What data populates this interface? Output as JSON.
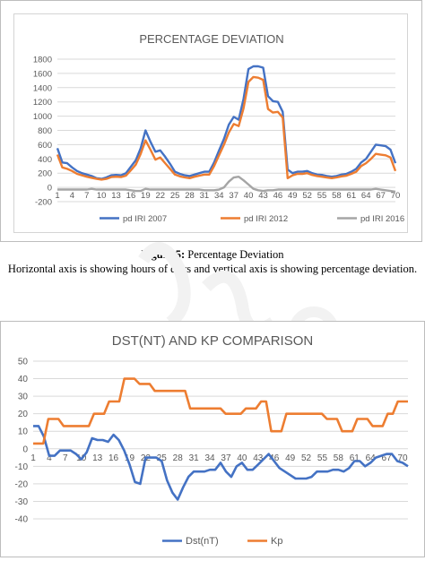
{
  "figure5": {
    "caption_label": "Figure 5:",
    "caption_text": " Percentage Deviation",
    "note": "Horizontal axis is showing hours of days and vertical axis is showing percentage deviation."
  },
  "colors": {
    "blue": "#4472c4",
    "orange": "#ed7d31",
    "gray": "#a5a5a5"
  },
  "chart_data": [
    {
      "type": "line",
      "title": "PERCENTAGE DEVIATION",
      "xlabel": "",
      "ylabel": "",
      "ylim": [
        -200,
        1800
      ],
      "yticks": [
        -200,
        0,
        200,
        400,
        600,
        800,
        1000,
        1200,
        1400,
        1600,
        1800
      ],
      "x_tick_labels": [
        "1",
        "4",
        "7",
        "10",
        "13",
        "16",
        "19",
        "22",
        "25",
        "28",
        "31",
        "34",
        "37",
        "40",
        "43",
        "46",
        "49",
        "52",
        "55",
        "58",
        "61",
        "64",
        "67",
        "70"
      ],
      "grid": true,
      "legend": "bottom",
      "series": [
        {
          "name": "pd IRI 2007",
          "color": "#4472c4",
          "values": [
            550,
            350,
            340,
            280,
            230,
            200,
            180,
            160,
            130,
            120,
            140,
            170,
            175,
            170,
            200,
            290,
            380,
            550,
            800,
            640,
            500,
            520,
            430,
            330,
            220,
            190,
            170,
            160,
            180,
            200,
            220,
            220,
            350,
            520,
            680,
            880,
            990,
            950,
            1240,
            1660,
            1700,
            1700,
            1680,
            1280,
            1210,
            1200,
            1060,
            250,
            200,
            220,
            220,
            230,
            200,
            180,
            175,
            160,
            150,
            160,
            180,
            190,
            220,
            260,
            350,
            400,
            500,
            600,
            590,
            580,
            530,
            340
          ]
        },
        {
          "name": "pd IRI 2012",
          "color": "#ed7d31",
          "values": [
            460,
            280,
            260,
            230,
            190,
            170,
            150,
            135,
            120,
            110,
            120,
            145,
            150,
            145,
            165,
            240,
            320,
            470,
            660,
            530,
            390,
            420,
            340,
            260,
            180,
            155,
            140,
            130,
            150,
            165,
            180,
            180,
            300,
            450,
            600,
            770,
            890,
            860,
            1110,
            1480,
            1550,
            1540,
            1510,
            1100,
            1050,
            1060,
            980,
            130,
            170,
            190,
            190,
            200,
            175,
            160,
            150,
            140,
            130,
            140,
            155,
            165,
            190,
            220,
            300,
            340,
            400,
            470,
            460,
            450,
            420,
            230
          ]
        },
        {
          "name": "pd IRI 2016",
          "color": "#a5a5a5",
          "values": [
            -30,
            -30,
            -30,
            -30,
            -30,
            -30,
            -30,
            -20,
            -30,
            -30,
            -30,
            -30,
            -30,
            -30,
            -30,
            -40,
            -50,
            -50,
            -20,
            -30,
            -30,
            -30,
            -30,
            -30,
            -30,
            -30,
            -30,
            -30,
            -30,
            -30,
            -40,
            -40,
            -40,
            -30,
            0,
            80,
            140,
            150,
            100,
            40,
            -20,
            -40,
            -50,
            -40,
            -40,
            -30,
            -30,
            -30,
            -30,
            -30,
            -30,
            -30,
            -30,
            -30,
            -30,
            -30,
            -30,
            -30,
            -30,
            -30,
            -30,
            -30,
            -30,
            -30,
            -30,
            -20,
            -30,
            -40,
            -50,
            -60
          ]
        }
      ]
    },
    {
      "type": "line",
      "title": "DST(NT) AND KP COMPARISON",
      "xlabel": "",
      "ylabel": "",
      "ylim": [
        -40,
        50
      ],
      "yticks": [
        -40,
        -30,
        -20,
        -10,
        0,
        10,
        20,
        30,
        40,
        50
      ],
      "x_tick_labels": [
        "1",
        "4",
        "7",
        "10",
        "13",
        "16",
        "19",
        "22",
        "25",
        "28",
        "31",
        "34",
        "37",
        "40",
        "43",
        "46",
        "49",
        "52",
        "55",
        "58",
        "61",
        "64",
        "67",
        "70"
      ],
      "grid": true,
      "legend": "bottom",
      "series": [
        {
          "name": "Dst(nT)",
          "color": "#4472c4",
          "values": [
            13,
            13,
            7,
            -4,
            -4,
            -1,
            -1,
            -1,
            -3,
            -6,
            -2,
            6,
            5,
            5,
            4,
            8,
            5,
            -1,
            -9,
            -19,
            -20,
            -5,
            -5,
            -5,
            -7,
            -18,
            -25,
            -29,
            -22,
            -16,
            -13,
            -13,
            -13,
            -12,
            -12,
            -8,
            -13,
            -16,
            -10,
            -8,
            -12,
            -12,
            -9,
            -6,
            -3,
            -7,
            -11,
            -13,
            -15,
            -17,
            -17,
            -17,
            -16,
            -13,
            -13,
            -13,
            -12,
            -12,
            -13,
            -11,
            -7,
            -7,
            -10,
            -8,
            -5,
            -4,
            -3,
            -3,
            -7,
            -8,
            -10
          ]
        },
        {
          "name": "Kp",
          "color": "#ed7d31",
          "values": [
            3,
            3,
            3,
            17,
            17,
            17,
            13,
            13,
            13,
            13,
            13,
            13,
            20,
            20,
            20,
            27,
            27,
            27,
            40,
            40,
            40,
            37,
            37,
            37,
            33,
            33,
            33,
            33,
            33,
            33,
            33,
            23,
            23,
            23,
            23,
            23,
            23,
            23,
            20,
            20,
            20,
            20,
            23,
            23,
            23,
            27,
            27,
            10,
            10,
            10,
            20,
            20,
            20,
            20,
            20,
            20,
            20,
            20,
            17,
            17,
            17,
            10,
            10,
            10,
            17,
            17,
            17,
            13,
            13,
            13,
            20,
            20,
            27,
            27,
            27
          ]
        }
      ]
    }
  ]
}
